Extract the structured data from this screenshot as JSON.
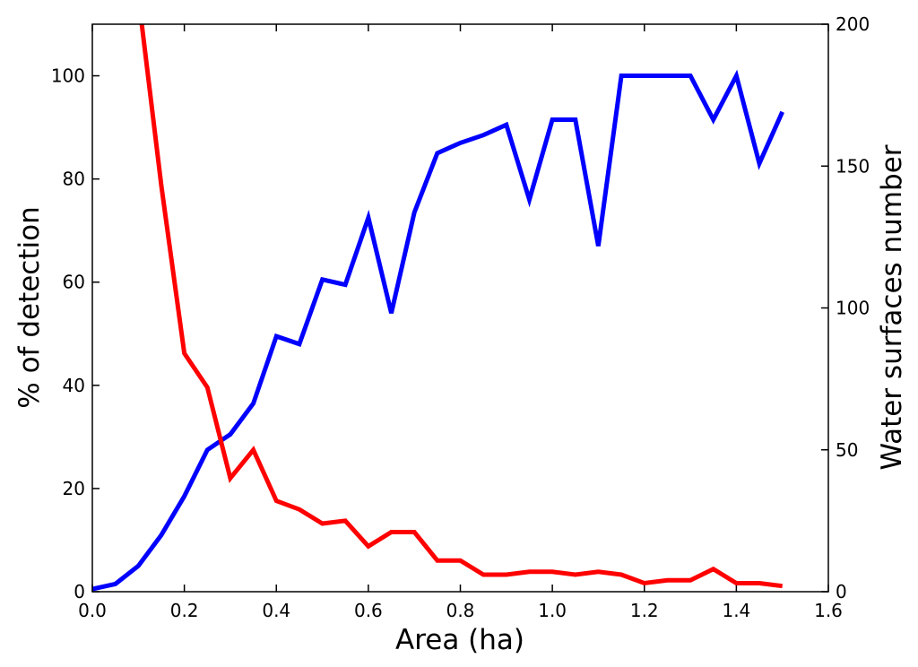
{
  "chart_data": {
    "type": "line",
    "xlabel": "Area (ha)",
    "ylabel_left": "% of detection",
    "ylabel_right": "Water surfaces number",
    "xlim": [
      0.0,
      1.6
    ],
    "ylim_left": [
      0,
      110
    ],
    "ylim_right": [
      0,
      200
    ],
    "x_ticks": [
      "0.0",
      "0.2",
      "0.4",
      "0.6",
      "0.8",
      "1.0",
      "1.2",
      "1.4",
      "1.6"
    ],
    "y_left_ticks": [
      "0",
      "20",
      "40",
      "60",
      "80",
      "100"
    ],
    "y_right_ticks": [
      "0",
      "50",
      "100",
      "150",
      "200"
    ],
    "grid": false,
    "series": [
      {
        "axis": "left",
        "color": "#0000ff",
        "x": [
          0.0,
          0.05,
          0.1,
          0.15,
          0.2,
          0.25,
          0.3,
          0.35,
          0.4,
          0.45,
          0.5,
          0.55,
          0.6,
          0.65,
          0.7,
          0.75,
          0.8,
          0.85,
          0.9,
          0.95,
          1.0,
          1.05,
          1.1,
          1.15,
          1.2,
          1.25,
          1.3,
          1.35,
          1.4,
          1.45,
          1.5
        ],
        "values": [
          0.5,
          1.5,
          5,
          11,
          18.5,
          27.5,
          30.5,
          36.5,
          49.5,
          48,
          60.5,
          59.5,
          72.5,
          54,
          73.5,
          85,
          87,
          88.5,
          90.5,
          76,
          91.5,
          91.5,
          67,
          100,
          100,
          100,
          100,
          91.5,
          100,
          83,
          93
        ]
      },
      {
        "axis": "right",
        "color": "#ff0000",
        "x": [
          0.1,
          0.15,
          0.2,
          0.25,
          0.3,
          0.35,
          0.4,
          0.45,
          0.5,
          0.55,
          0.6,
          0.65,
          0.7,
          0.75,
          0.8,
          0.85,
          0.9,
          0.95,
          1.0,
          1.05,
          1.1,
          1.15,
          1.2,
          1.25,
          1.3,
          1.35,
          1.4,
          1.45,
          1.5
        ],
        "values": [
          210,
          143,
          84,
          72,
          40,
          50,
          32,
          29,
          24,
          25,
          16,
          21,
          21,
          11,
          11,
          6,
          6,
          7,
          7,
          6,
          7,
          6,
          3,
          4,
          4,
          8,
          3,
          3,
          2
        ]
      }
    ]
  }
}
